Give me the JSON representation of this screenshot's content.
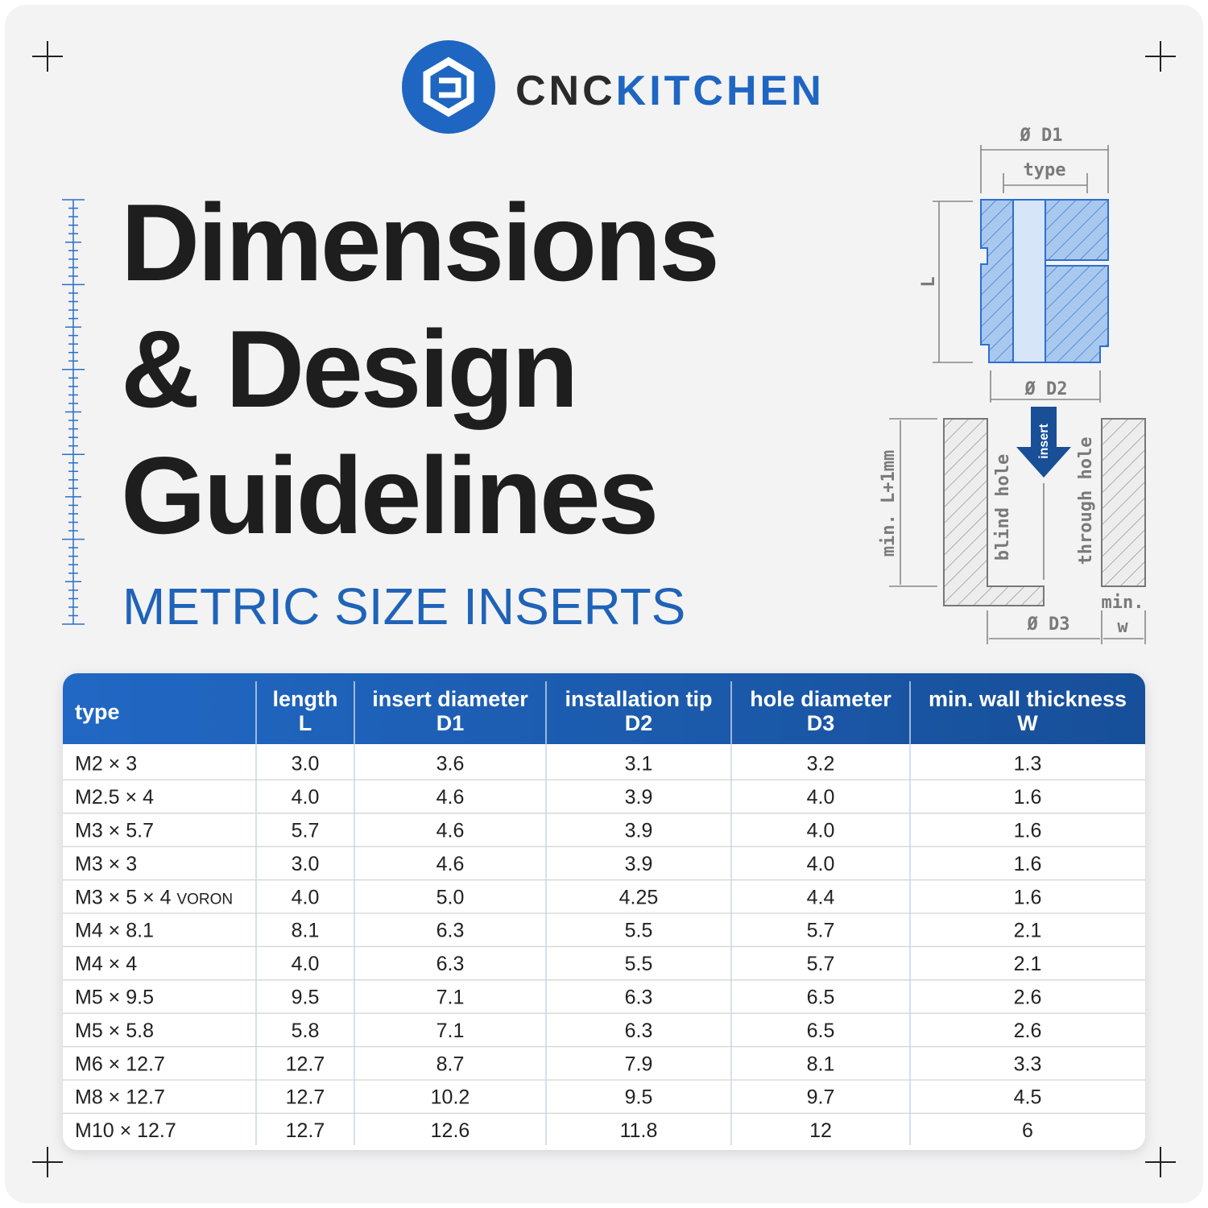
{
  "logo": {
    "brand_a": "CNC",
    "brand_b": "KITCHEN"
  },
  "header": {
    "title_lines": [
      "Dimensions",
      "& Design",
      "Guidelines"
    ],
    "subtitle": "METRIC SIZE INSERTS"
  },
  "diagram": {
    "d1": "Ø D1",
    "type": "type",
    "length": "L",
    "d2": "Ø D2",
    "insert": "insert",
    "min_depth": "min. L+1mm",
    "blind_hole": "blind hole",
    "through_hole": "through hole",
    "min": "min.",
    "w": "w",
    "d3": "Ø D3"
  },
  "table": {
    "columns": [
      {
        "name": "type"
      },
      {
        "name": "length",
        "sub": "L"
      },
      {
        "name": "insert diameter",
        "sub": "D1"
      },
      {
        "name": "installation tip",
        "sub": "D2"
      },
      {
        "name": "hole diameter",
        "sub": "D3"
      },
      {
        "name": "min. wall thickness",
        "sub": "W"
      }
    ],
    "rows": [
      {
        "type": "M2 × 3",
        "values": [
          "3.0",
          "3.6",
          "3.1",
          "3.2",
          "1.3"
        ]
      },
      {
        "type": "M2.5 × 4",
        "values": [
          "4.0",
          "4.6",
          "3.9",
          "4.0",
          "1.6"
        ]
      },
      {
        "type": "M3 × 5.7",
        "values": [
          "5.7",
          "4.6",
          "3.9",
          "4.0",
          "1.6"
        ]
      },
      {
        "type": "M3 × 3",
        "values": [
          "3.0",
          "4.6",
          "3.9",
          "4.0",
          "1.6"
        ]
      },
      {
        "type": "M3 × 5 × 4",
        "tag": "VORON",
        "values": [
          "4.0",
          "5.0",
          "4.25",
          "4.4",
          "1.6"
        ]
      },
      {
        "type": "M4 × 8.1",
        "values": [
          "8.1",
          "6.3",
          "5.5",
          "5.7",
          "2.1"
        ]
      },
      {
        "type": "M4 × 4",
        "values": [
          "4.0",
          "6.3",
          "5.5",
          "5.7",
          "2.1"
        ]
      },
      {
        "type": "M5 × 9.5",
        "values": [
          "9.5",
          "7.1",
          "6.3",
          "6.5",
          "2.6"
        ]
      },
      {
        "type": "M5 × 5.8",
        "values": [
          "5.8",
          "7.1",
          "6.3",
          "6.5",
          "2.6"
        ]
      },
      {
        "type": "M6 × 12.7",
        "values": [
          "12.7",
          "8.7",
          "7.9",
          "8.1",
          "3.3"
        ]
      },
      {
        "type": "M8 × 12.7",
        "values": [
          "12.7",
          "10.2",
          "9.5",
          "9.7",
          "4.5"
        ]
      },
      {
        "type": "M10 × 12.7",
        "values": [
          "12.7",
          "12.6",
          "11.8",
          "12",
          "6"
        ]
      }
    ]
  }
}
